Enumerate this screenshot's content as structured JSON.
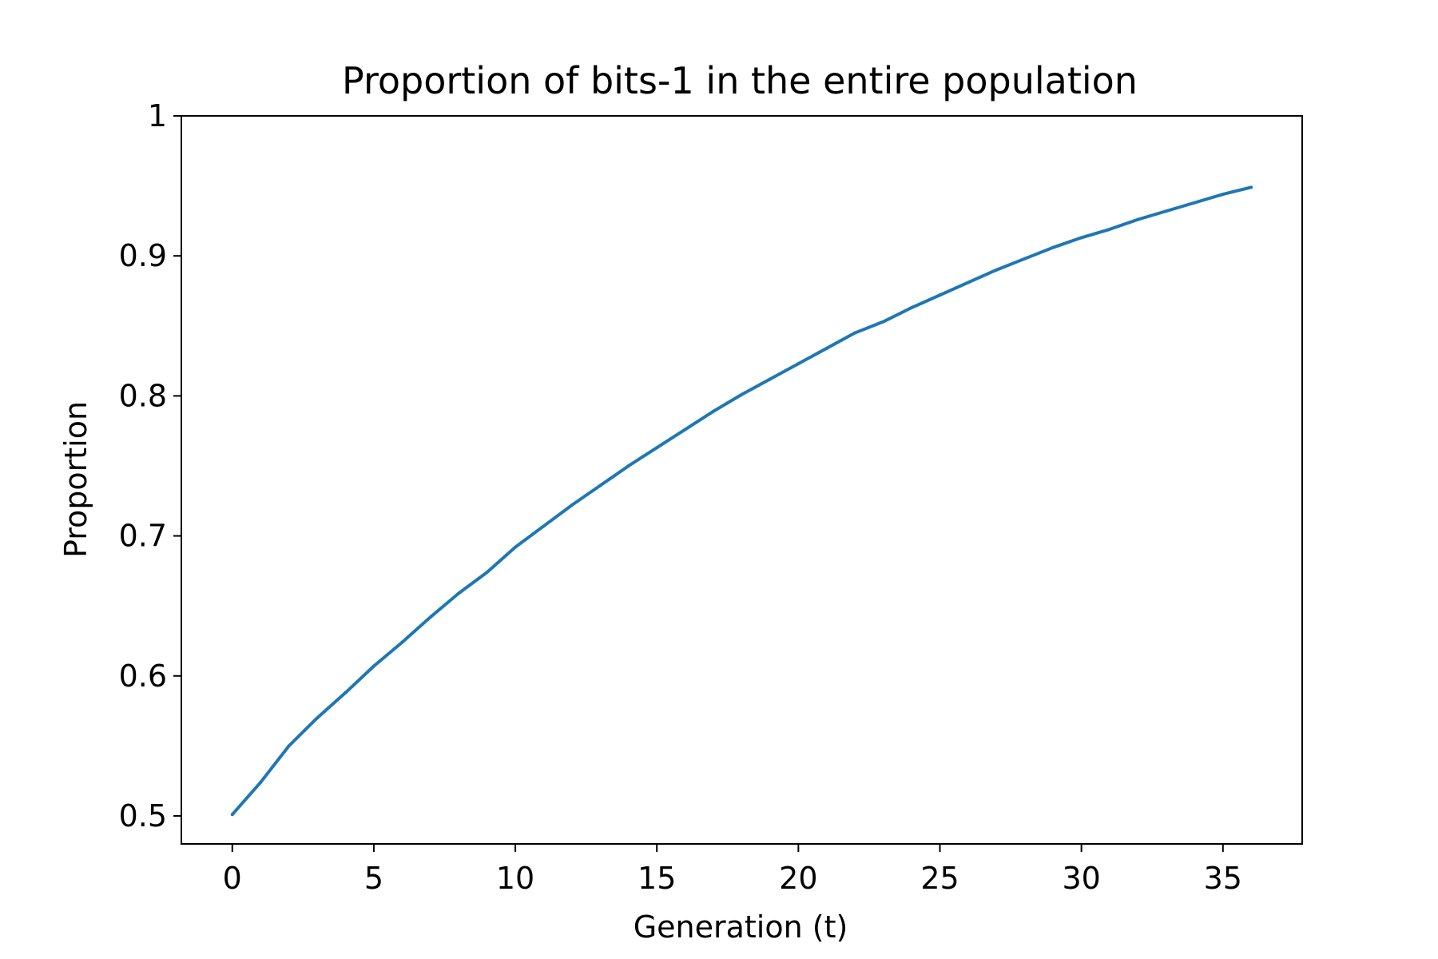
{
  "chart_data": {
    "type": "line",
    "title": "Proportion of bits-1 in the entire population",
    "xlabel": "Generation (t)",
    "ylabel": "Proportion",
    "xlim": [
      -1.8,
      37.8
    ],
    "ylim": [
      0.48,
      1.0
    ],
    "xticks": [
      0,
      5,
      10,
      15,
      20,
      25,
      30,
      35
    ],
    "xtick_labels": [
      "0",
      "5",
      "10",
      "15",
      "20",
      "25",
      "30",
      "35"
    ],
    "yticks": [
      0.5,
      0.6,
      0.7,
      0.8,
      0.9,
      1.0
    ],
    "ytick_labels": [
      "0.5",
      "0.6",
      "0.7",
      "0.8",
      "0.9",
      "1"
    ],
    "grid": false,
    "legend": "none",
    "line_color": "#1f77b4",
    "series": [
      {
        "x": [
          0,
          1,
          2,
          3,
          4,
          5,
          6,
          7,
          8,
          9,
          10,
          11,
          12,
          13,
          14,
          15,
          16,
          17,
          18,
          19,
          20,
          21,
          22,
          23,
          24,
          25,
          26,
          27,
          28,
          29,
          30,
          31,
          32,
          33,
          34,
          35,
          36
        ],
        "values": [
          0.501,
          0.524,
          0.55,
          0.57,
          0.588,
          0.607,
          0.624,
          0.642,
          0.659,
          0.674,
          0.692,
          0.707,
          0.722,
          0.736,
          0.75,
          0.763,
          0.776,
          0.789,
          0.801,
          0.812,
          0.823,
          0.834,
          0.845,
          0.853,
          0.863,
          0.872,
          0.881,
          0.89,
          0.898,
          0.906,
          0.913,
          0.919,
          0.926,
          0.932,
          0.938,
          0.944,
          0.949
        ]
      }
    ]
  }
}
